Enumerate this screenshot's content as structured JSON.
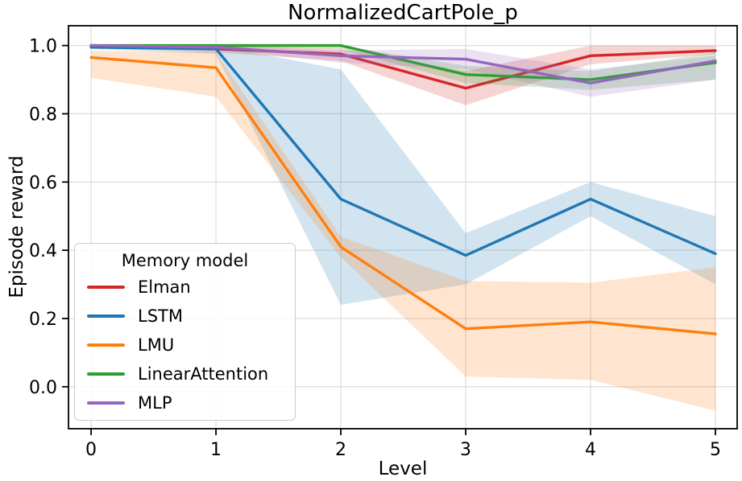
{
  "chart_data": {
    "type": "line",
    "title": "NormalizedCartPole_p",
    "xlabel": "Level",
    "ylabel": "Episode reward",
    "x": [
      0,
      1,
      2,
      3,
      4,
      5
    ],
    "xlim": [
      -0.181,
      5.174
    ],
    "ylim": [
      -0.123,
      1.058
    ],
    "xtick_values": [
      0,
      1,
      2,
      3,
      4,
      5
    ],
    "xtick_labels": [
      "0",
      "1",
      "2",
      "3",
      "4",
      "5"
    ],
    "ytick_values": [
      0.0,
      0.2,
      0.4,
      0.6,
      0.8,
      1.0
    ],
    "ytick_labels": [
      "0.0",
      "0.2",
      "0.4",
      "0.6",
      "0.8",
      "1.0"
    ],
    "grid": true,
    "grid_color": "#dedede",
    "spine_color": "#000000",
    "band_alpha": 0.2,
    "legend": {
      "title": "Memory model",
      "position": "lower left"
    },
    "series": [
      {
        "name": "Elman",
        "color": "#d62728",
        "values": [
          1.0,
          0.99,
          0.975,
          0.875,
          0.97,
          0.985
        ],
        "band_low": [
          0.995,
          0.98,
          0.955,
          0.825,
          0.945,
          0.975
        ],
        "band_high": [
          1.0,
          1.0,
          0.99,
          0.925,
          1.0,
          1.0
        ]
      },
      {
        "name": "LSTM",
        "color": "#1f77b4",
        "values": [
          0.995,
          0.99,
          0.55,
          0.385,
          0.55,
          0.39
        ],
        "band_low": [
          0.99,
          0.975,
          0.24,
          0.3,
          0.5,
          0.3
        ],
        "band_high": [
          1.0,
          1.0,
          0.93,
          0.45,
          0.6,
          0.5
        ]
      },
      {
        "name": "LMU",
        "color": "#ff7f0e",
        "values": [
          0.965,
          0.935,
          0.41,
          0.17,
          0.19,
          0.155
        ],
        "band_low": [
          0.905,
          0.85,
          0.38,
          0.03,
          0.02,
          -0.07
        ],
        "band_high": [
          0.985,
          0.98,
          0.44,
          0.31,
          0.305,
          0.35
        ]
      },
      {
        "name": "LinearAttention",
        "color": "#2ca02c",
        "values": [
          1.0,
          1.0,
          1.0,
          0.915,
          0.9,
          0.95
        ],
        "band_low": [
          0.995,
          0.995,
          0.99,
          0.89,
          0.87,
          0.9
        ],
        "band_high": [
          1.0,
          1.0,
          1.0,
          0.94,
          0.925,
          0.98
        ]
      },
      {
        "name": "MLP",
        "color": "#9467bd",
        "values": [
          1.0,
          0.995,
          0.97,
          0.96,
          0.89,
          0.955
        ],
        "band_low": [
          1.0,
          0.99,
          0.95,
          0.93,
          0.85,
          0.9
        ],
        "band_high": [
          1.0,
          1.0,
          0.985,
          0.99,
          0.93,
          0.97
        ]
      }
    ]
  }
}
